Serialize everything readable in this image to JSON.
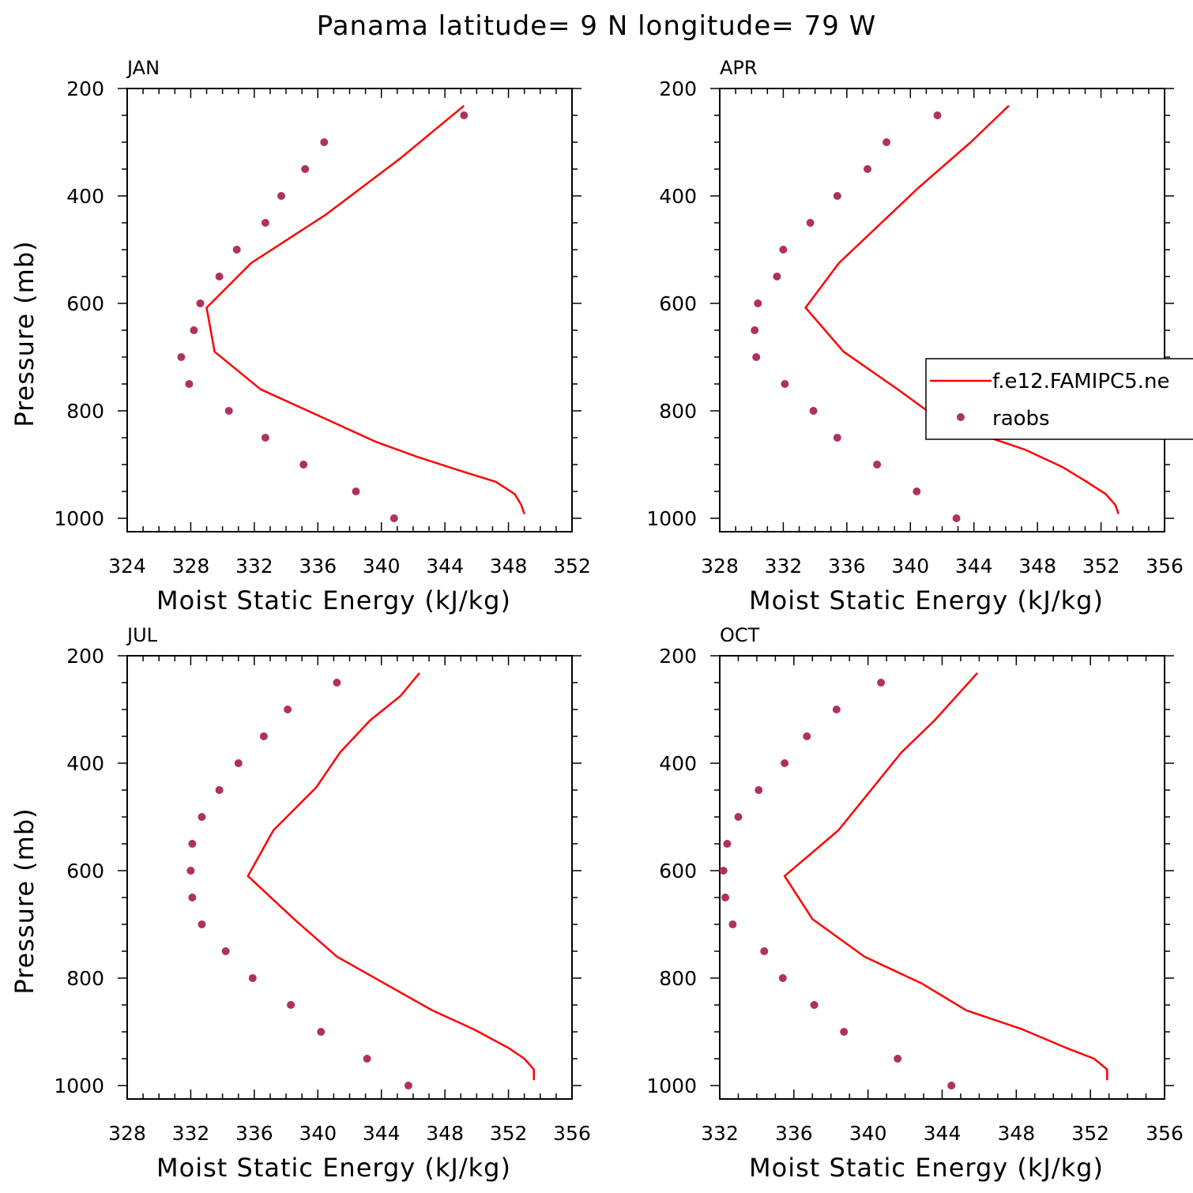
{
  "figure": {
    "suptitle": "Panama  latitude= 9 N longitude= 79 W",
    "legend": {
      "model": "f.e12.FAMIPC5.ne",
      "obs": "raobs"
    }
  },
  "colors": {
    "model": "#ff0000",
    "obs": "#b03060",
    "axes": "#000000"
  },
  "chart_data": [
    {
      "type": "line",
      "title": "JAN",
      "xlabel": "Moist Static Energy (kJ/kg)",
      "ylabel": "Pressure (mb)",
      "xlim": [
        324,
        352
      ],
      "xticks": [
        324,
        328,
        332,
        336,
        340,
        344,
        348,
        352
      ],
      "ylim": [
        200,
        1025
      ],
      "yticks": [
        200,
        400,
        600,
        800,
        1000
      ],
      "series": [
        {
          "name": "f.e12.FAMIPC5.ne",
          "kind": "line",
          "x": [
            349.0,
            348.8,
            348.4,
            347.2,
            344.8,
            342.2,
            339.6,
            336.5,
            332.4,
            329.5,
            329.0,
            331.8,
            336.5,
            341.2,
            345.2
          ],
          "y": [
            992,
            975,
            955,
            932,
            910,
            885,
            857,
            815,
            760,
            690,
            608,
            525,
            435,
            330,
            232
          ]
        },
        {
          "name": "raobs",
          "kind": "scatter",
          "x": [
            340.8,
            338.4,
            335.1,
            332.7,
            330.4,
            327.9,
            327.4,
            328.2,
            328.6,
            329.8,
            330.9,
            332.7,
            333.7,
            335.2,
            336.4,
            345.2
          ],
          "y": [
            1000,
            950,
            900,
            850,
            800,
            750,
            700,
            650,
            600,
            550,
            500,
            450,
            400,
            350,
            300,
            250
          ]
        }
      ]
    },
    {
      "type": "line",
      "title": "APR",
      "xlabel": "Moist Static Energy (kJ/kg)",
      "ylabel": "",
      "xlim": [
        328,
        356
      ],
      "xticks": [
        328,
        332,
        336,
        340,
        344,
        348,
        352,
        356
      ],
      "ylim": [
        200,
        1025
      ],
      "yticks": [
        200,
        400,
        600,
        800,
        1000
      ],
      "series": [
        {
          "name": "f.e12.FAMIPC5.ne",
          "kind": "line",
          "x": [
            353.1,
            352.9,
            352.3,
            351.1,
            349.6,
            347.2,
            344.5,
            341.3,
            339.2,
            335.8,
            333.4,
            335.5,
            340.5,
            343.8,
            346.2
          ],
          "y": [
            992,
            975,
            955,
            932,
            905,
            872,
            845,
            805,
            760,
            690,
            608,
            525,
            385,
            300,
            232
          ]
        },
        {
          "name": "raobs",
          "kind": "scatter",
          "x": [
            342.9,
            340.4,
            337.9,
            335.4,
            333.9,
            332.1,
            330.3,
            330.2,
            330.4,
            331.6,
            332.0,
            333.7,
            335.4,
            337.3,
            338.5,
            341.7
          ],
          "y": [
            1000,
            950,
            900,
            850,
            800,
            750,
            700,
            650,
            600,
            550,
            500,
            450,
            400,
            350,
            300,
            250
          ]
        }
      ]
    },
    {
      "type": "line",
      "title": "JUL",
      "xlabel": "Moist Static Energy (kJ/kg)",
      "ylabel": "Pressure (mb)",
      "xlim": [
        328,
        356
      ],
      "xticks": [
        328,
        332,
        336,
        340,
        344,
        348,
        352,
        356
      ],
      "ylim": [
        200,
        1025
      ],
      "yticks": [
        200,
        400,
        600,
        800,
        1000
      ],
      "series": [
        {
          "name": "f.e12.FAMIPC5.ne",
          "kind": "line",
          "x": [
            353.6,
            353.6,
            353.0,
            352.0,
            349.8,
            347.2,
            344.2,
            341.2,
            338.5,
            335.6,
            337.2,
            339.9,
            341.4,
            343.3,
            345.2,
            346.4
          ],
          "y": [
            990,
            970,
            950,
            930,
            895,
            860,
            810,
            760,
            690,
            610,
            525,
            445,
            380,
            320,
            275,
            232
          ]
        },
        {
          "name": "raobs",
          "kind": "scatter",
          "x": [
            345.7,
            343.1,
            340.2,
            338.3,
            335.9,
            334.2,
            332.7,
            332.1,
            332.0,
            332.1,
            332.7,
            333.8,
            335.0,
            336.6,
            338.1,
            341.2
          ],
          "y": [
            1000,
            950,
            900,
            850,
            800,
            750,
            700,
            650,
            600,
            550,
            500,
            450,
            400,
            350,
            300,
            250
          ]
        }
      ]
    },
    {
      "type": "line",
      "title": "OCT",
      "xlabel": "Moist Static Energy (kJ/kg)",
      "ylabel": "",
      "xlim": [
        332,
        356
      ],
      "xticks": [
        332,
        336,
        340,
        344,
        348,
        352,
        356
      ],
      "ylim": [
        200,
        1025
      ],
      "yticks": [
        200,
        400,
        600,
        800,
        1000
      ],
      "series": [
        {
          "name": "f.e12.FAMIPC5.ne",
          "kind": "line",
          "x": [
            352.9,
            352.9,
            352.2,
            350.7,
            348.3,
            345.3,
            342.9,
            339.8,
            337.0,
            335.5,
            338.4,
            341.8,
            343.6,
            345.9
          ],
          "y": [
            990,
            970,
            950,
            930,
            895,
            860,
            810,
            760,
            690,
            610,
            525,
            380,
            320,
            232
          ]
        },
        {
          "name": "raobs",
          "kind": "scatter",
          "x": [
            344.5,
            341.6,
            338.7,
            337.1,
            335.4,
            334.4,
            332.7,
            332.3,
            332.2,
            332.4,
            333.0,
            334.1,
            335.5,
            336.7,
            338.3,
            340.7
          ],
          "y": [
            1000,
            950,
            900,
            850,
            800,
            750,
            700,
            650,
            600,
            550,
            500,
            450,
            400,
            350,
            300,
            250
          ]
        }
      ]
    }
  ]
}
